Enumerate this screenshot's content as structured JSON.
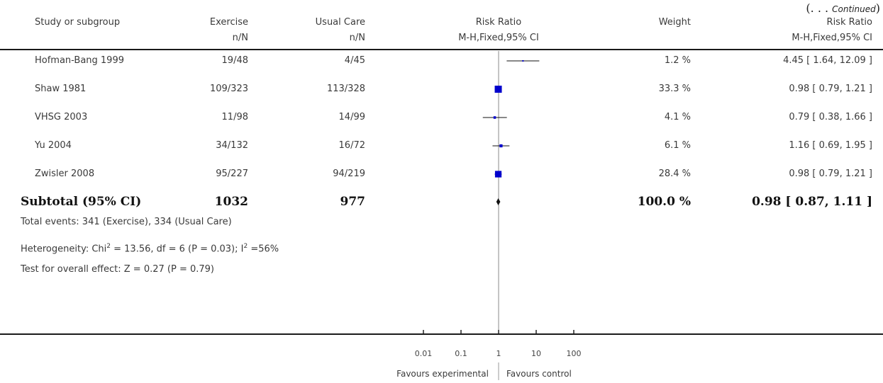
{
  "continued": {
    "prefix": "(. . . ",
    "word": "Continued",
    "suffix": ")"
  },
  "headers": {
    "study": "Study or subgroup",
    "exercise": "Exercise",
    "exercise_sub": "n/N",
    "usual": "Usual Care",
    "usual_sub": "n/N",
    "rr": "Risk Ratio",
    "rr_sub": "M-H,Fixed,95% CI",
    "weight": "Weight",
    "rr2": "Risk Ratio",
    "rr2_sub": "M-H,Fixed,95% CI"
  },
  "rows": [
    {
      "study": "Hofman-Bang 1999",
      "exercise": "19/48",
      "usual": "4/45",
      "weight": "1.2 %",
      "ci_text": "4.45 [ 1.64, 12.09 ]"
    },
    {
      "study": "Shaw 1981",
      "exercise": "109/323",
      "usual": "113/328",
      "weight": "33.3 %",
      "ci_text": "0.98 [ 0.79, 1.21 ]"
    },
    {
      "study": "VHSG 2003",
      "exercise": "11/98",
      "usual": "14/99",
      "weight": "4.1 %",
      "ci_text": "0.79 [ 0.38, 1.66 ]"
    },
    {
      "study": "Yu 2004",
      "exercise": "34/132",
      "usual": "16/72",
      "weight": "6.1 %",
      "ci_text": "1.16 [ 0.69, 1.95 ]"
    },
    {
      "study": "Zwisler 2008",
      "exercise": "95/227",
      "usual": "94/219",
      "weight": "28.4 %",
      "ci_text": "0.98 [ 0.79, 1.21 ]"
    }
  ],
  "subtotal": {
    "label": "Subtotal (95% CI)",
    "exercise": "1032",
    "usual": "977",
    "weight": "100.0 %",
    "ci_text": "0.98 [ 0.87, 1.11 ]"
  },
  "footnotes": {
    "events": "Total events: 341 (Exercise), 334 (Usual Care)",
    "het_a": "Heterogeneity: Chi",
    "het_sup1": "2",
    "het_b": " = 13.56, df = 6 (P = 0.03); I",
    "het_sup2": "2",
    "het_c": " =56%",
    "overall": "Test for overall effect: Z = 0.27 (P = 0.79)"
  },
  "axis": {
    "ticks": [
      0.01,
      0.1,
      1,
      10,
      100
    ],
    "tick_labels": [
      "0.01",
      "0.1",
      "1",
      "10",
      "100"
    ],
    "left_label": "Favours experimental",
    "right_label": "Favours control"
  },
  "chart_data": {
    "type": "forest",
    "scale": "log",
    "xlim": [
      0.01,
      100
    ],
    "studies": [
      {
        "study": "Hofman-Bang 1999",
        "rr": 4.45,
        "lower": 1.64,
        "upper": 12.09,
        "weight": 1.2
      },
      {
        "study": "Shaw 1981",
        "rr": 0.98,
        "lower": 0.79,
        "upper": 1.21,
        "weight": 33.3
      },
      {
        "study": "VHSG 2003",
        "rr": 0.79,
        "lower": 0.38,
        "upper": 1.66,
        "weight": 4.1
      },
      {
        "study": "Yu 2004",
        "rr": 1.16,
        "lower": 0.69,
        "upper": 1.95,
        "weight": 6.1
      },
      {
        "study": "Zwisler 2008",
        "rr": 0.98,
        "lower": 0.79,
        "upper": 1.21,
        "weight": 28.4
      }
    ],
    "pooled": {
      "rr": 0.98,
      "lower": 0.87,
      "upper": 1.11
    },
    "marker_color": "#0000cc"
  }
}
